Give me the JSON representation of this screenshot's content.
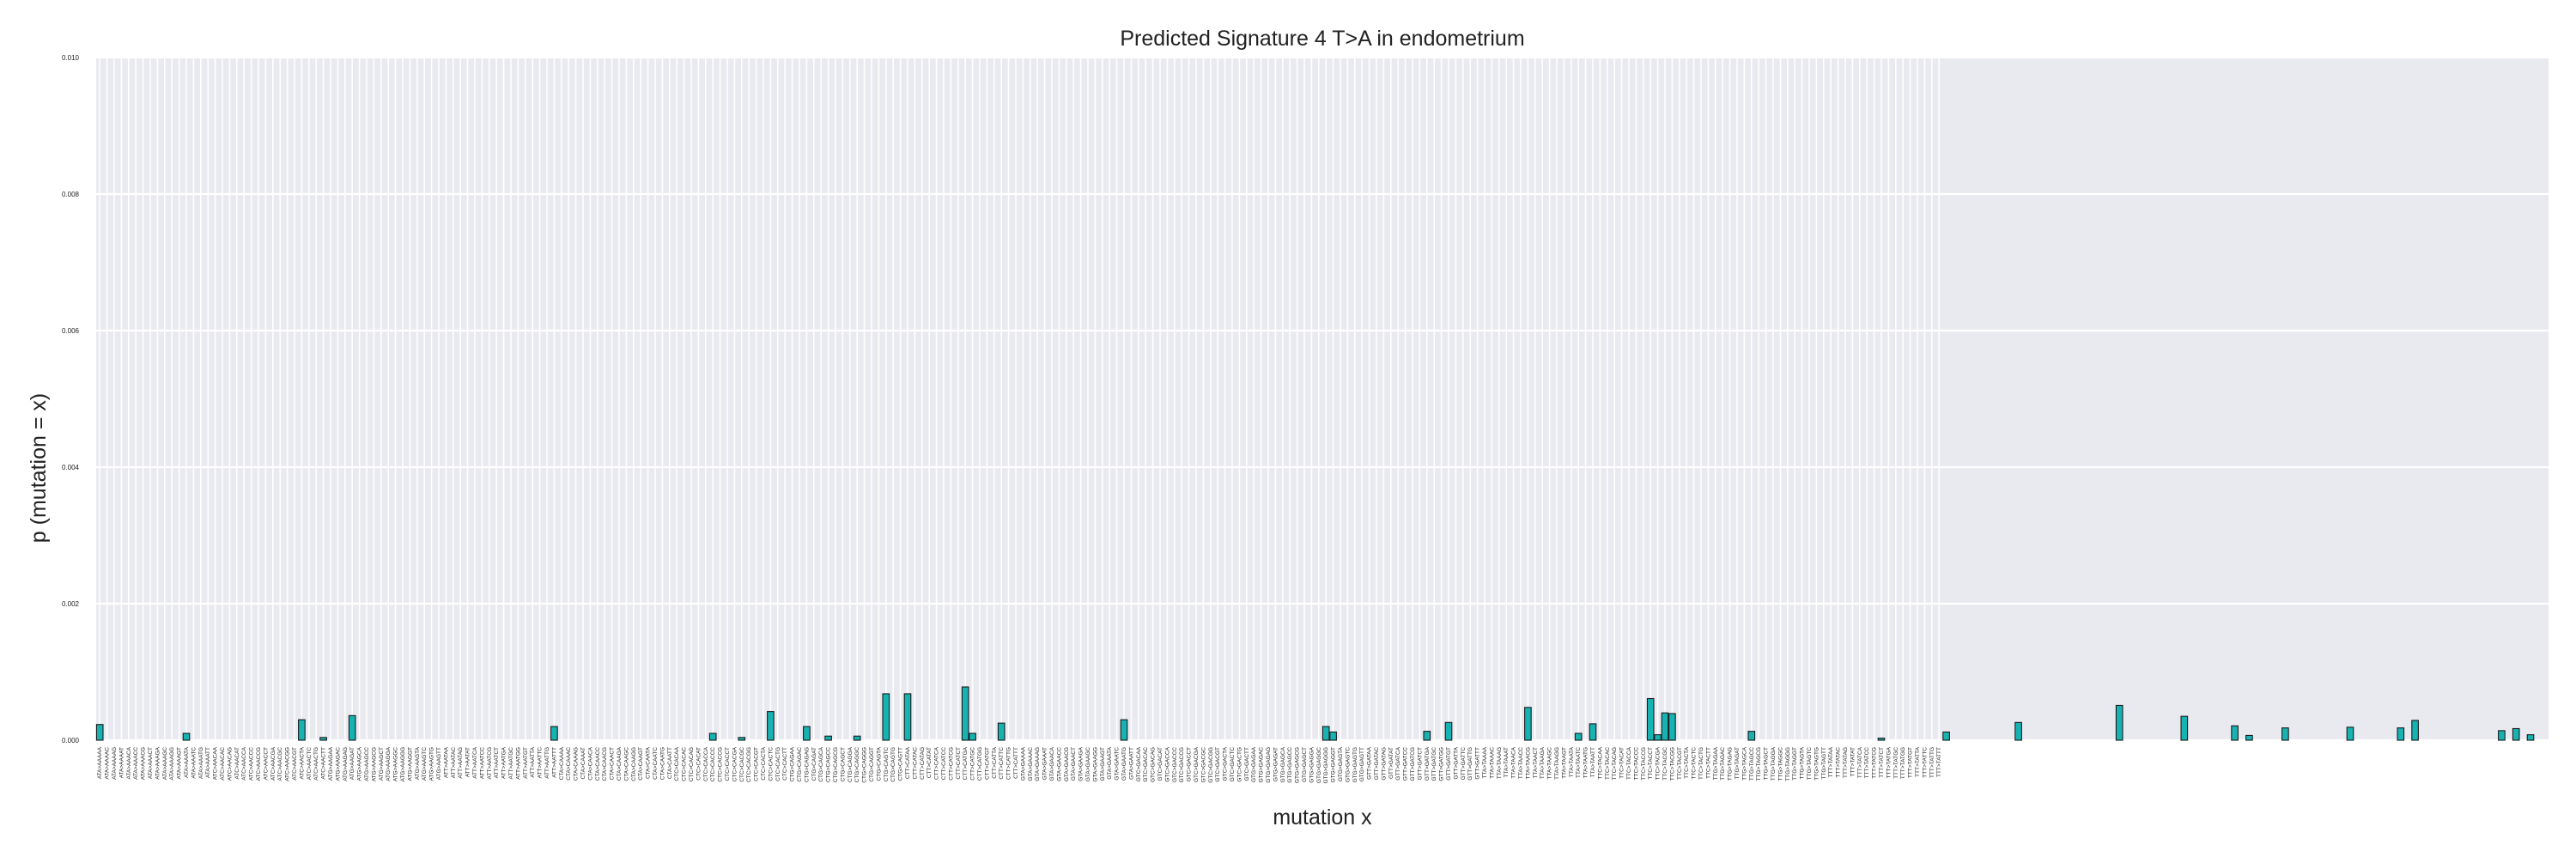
{
  "chart_data": {
    "type": "bar",
    "title": "Predicted Signature 4 T>A in endometrium",
    "xlabel": "mutation x",
    "ylabel": "p (mutation = x)",
    "ylim": [
      0,
      0.01
    ],
    "yticks": [
      "0.000",
      "0.002",
      "0.004",
      "0.006",
      "0.008",
      "0.010"
    ],
    "grid": true,
    "legend": "none",
    "bar_color": "#17b3b3",
    "edge_color": "#1a1a1a",
    "plot_background": "#e9e9f0",
    "contexts": {
      "left": [
        "A",
        "C",
        "G",
        "T"
      ],
      "center": "T",
      "right": [
        "A",
        "C",
        "G",
        "T"
      ],
      "tails": [
        "AA",
        "AC",
        "AG",
        "AT",
        "CA",
        "CC",
        "CG",
        "CT",
        "GA",
        "GC",
        "GG",
        "GT",
        "TA",
        "TC",
        "TG",
        "TT"
      ],
      "label_pattern": "{L}{C}{R}>{L}A{R}{TAIL}"
    },
    "values_by_index": {
      "0": 0.00023,
      "12": 0.0001,
      "28": 0.0003,
      "31": 4e-05,
      "35": 0.00036,
      "63": 0.0002,
      "85": 0.0001,
      "89": 4e-05,
      "93": 0.00042,
      "98": 0.0002,
      "101": 6e-05,
      "105": 6e-05,
      "109": 0.00068,
      "112": 0.00068,
      "120": 0.00078,
      "121": 0.0001,
      "125": 0.00025,
      "142": 0.0003,
      "170": 0.0002,
      "171": 0.00012,
      "184": 0.00013,
      "187": 0.00026,
      "198": 0.00048,
      "205": 0.0001,
      "207": 0.00024,
      "215": 0.00061,
      "216": 8e-05,
      "217": 0.0004,
      "218": 0.00039,
      "229": 0.00013,
      "247": 3e-05,
      "256": 0.00012,
      "266": 0.00026,
      "280": 0.00051,
      "289": 0.00035,
      "296": 0.00021,
      "298": 7e-05,
      "303": 0.00018,
      "312": 0.00019,
      "319": 0.00018,
      "321": 0.00029,
      "333": 0.00014,
      "335": 0.00017,
      "337": 8e-05
    }
  }
}
